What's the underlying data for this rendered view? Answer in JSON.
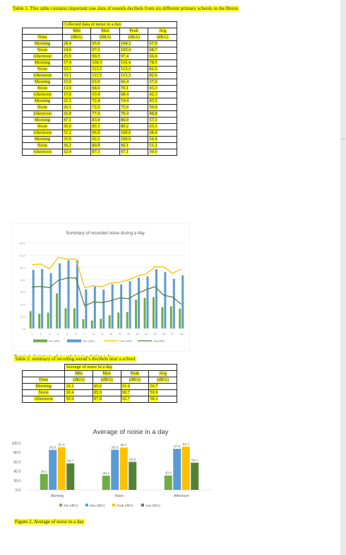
{
  "table1": {
    "caption": "Table 1. This table contains important raw data of sounds decibels from six different primary schools in the Bronx",
    "group_header": "Collected data of noise in a day",
    "col_headers": [
      {
        "top": "",
        "bottom": "Time"
      },
      {
        "top": "Min",
        "bottom": "(dBA)"
      },
      {
        "top": "Max",
        "bottom": "(dBA)"
      },
      {
        "top": "Peak",
        "bottom": "(dBA)"
      },
      {
        "top": "Avg",
        "bottom": "(dBA)"
      }
    ],
    "rows": [
      [
        "Morning",
        "28.4",
        "95.9",
        "104.2",
        "67.9"
      ],
      [
        "Noon",
        "24.0",
        "97.3",
        "105.4",
        "68.7"
      ],
      [
        "Afternoon",
        "25.9",
        "90.5",
        "97.4",
        "66.6"
      ],
      [
        "Morning",
        "57.4",
        "106.5",
        "116.4",
        "78.5"
      ],
      [
        "Noon",
        "33.1",
        "111.5",
        "113.3",
        "82.6"
      ],
      [
        "Afternoon",
        "33.1",
        "111.5",
        "113.3",
        "82.6"
      ],
      [
        "Morning",
        "15.0",
        "63.9",
        "66.4",
        "37.0"
      ],
      [
        "Noon",
        "13.0",
        "68.6",
        "70.1",
        "43.3"
      ],
      [
        "Afternoon",
        "15.8",
        "63.4",
        "68.4",
        "42.3"
      ],
      [
        "Morning",
        "21.5",
        "72.4",
        "74.4",
        "45.5"
      ],
      [
        "Noon",
        "26.1",
        "72.2",
        "75.9",
        "50.0"
      ],
      [
        "Afternoon",
        "26.8",
        "77.4",
        "79.4",
        "48.8"
      ],
      [
        "Morning",
        "47.1",
        "83.0",
        "86.0",
        "57.1"
      ],
      [
        "Noon",
        "50.0",
        "85.1",
        "89.2",
        "63.3"
      ],
      [
        "Afternoon",
        "51.2",
        "96.9",
        "100.6",
        "68.4"
      ],
      [
        "Morning",
        "35.0",
        "92.1",
        "100.9",
        "54.4"
      ],
      [
        "Noon",
        "36.2",
        "80.9",
        "90.1",
        "51.2"
      ],
      [
        "Afternoon",
        "32.4",
        "87.1",
        "97.1",
        "39.6"
      ]
    ]
  },
  "figure1": {
    "caption": "Figure 1. Summary of recorded noise during a day"
  },
  "table2": {
    "caption": "Table 2. summary of recoding sound’s decibels near a school",
    "group_header": "Average of noise in a day",
    "col_headers": [
      {
        "top": "",
        "bottom": "Time"
      },
      {
        "top": "Min",
        "bottom": "(dBA)"
      },
      {
        "top": "Max",
        "bottom": "(dBA)"
      },
      {
        "top": "Peak",
        "bottom": "(dBA)"
      },
      {
        "top": "Avg",
        "bottom": "(dBA)"
      }
    ],
    "rows": [
      [
        "Morning",
        "34.1",
        "85.6",
        "91.4",
        "56.7"
      ],
      [
        "Noon",
        "30.4",
        "85.9",
        "90.7",
        "59.9"
      ],
      [
        "Afternoon",
        "30.9",
        "87.8",
        "92.7",
        "58.1"
      ]
    ]
  },
  "figure2": {
    "caption": "Figure 2. Average of noise in a day"
  },
  "colors": {
    "min": "#5b9bd5",
    "max": "#6fa8dc",
    "peak": "#ffc000",
    "avg": "#548235",
    "green_bar": "#70ad47",
    "blue_bar": "#5b9bd5",
    "yellow_bar": "#ffc000",
    "dark_green_bar": "#548235"
  },
  "chart_data": [
    {
      "type": "bar",
      "title": "Summary of recorded noise during a day",
      "categories": [
        "1",
        "2",
        "3",
        "4",
        "5",
        "6",
        "7",
        "8",
        "9",
        "10",
        "11",
        "12",
        "13",
        "14",
        "15",
        "16",
        "17",
        "18"
      ],
      "y_tick_labels": [
        "0.0",
        "20.0",
        "40.0",
        "60.0",
        "80.0",
        "100.0",
        "120.0",
        "140.0"
      ],
      "ylim": [
        0,
        140
      ],
      "series": [
        {
          "name": "Min (dBA)",
          "kind": "bar",
          "values": [
            28.4,
            24.0,
            25.9,
            57.4,
            33.1,
            33.1,
            15.0,
            13.0,
            15.8,
            21.5,
            26.1,
            26.8,
            47.1,
            50.0,
            51.2,
            35.0,
            36.2,
            32.4
          ]
        },
        {
          "name": "Max (dBA)",
          "kind": "bar",
          "values": [
            95.9,
            97.3,
            90.5,
            106.5,
            111.5,
            111.5,
            63.9,
            68.6,
            63.4,
            72.4,
            72.2,
            77.4,
            83.0,
            85.1,
            96.9,
            92.1,
            80.9,
            87.1
          ]
        },
        {
          "name": "Peak (dBA)",
          "kind": "line",
          "values": [
            104.2,
            105.4,
            97.4,
            116.4,
            113.3,
            113.3,
            66.4,
            70.1,
            68.4,
            74.4,
            75.9,
            79.4,
            86.0,
            89.2,
            100.6,
            100.9,
            90.1,
            97.1
          ]
        },
        {
          "name": "Avg (dBA)",
          "kind": "line",
          "values": [
            67.9,
            68.7,
            66.6,
            78.5,
            82.6,
            82.6,
            37.0,
            43.3,
            42.3,
            45.5,
            50.0,
            48.8,
            57.1,
            63.3,
            68.4,
            54.4,
            51.2,
            39.6
          ]
        }
      ]
    },
    {
      "type": "bar",
      "title": "Average of noise in a day",
      "categories": [
        "Morning",
        "Noon",
        "Afternoon"
      ],
      "y_tick_labels": [
        "0.0",
        "20.0",
        "40.0",
        "60.0",
        "80.0",
        "100.0"
      ],
      "ylim": [
        0,
        100
      ],
      "series": [
        {
          "name": "Min (dBA)",
          "values": [
            34.1,
            30.4,
            30.9
          ],
          "labels": [
            "34.1",
            "30.4",
            "30.9"
          ]
        },
        {
          "name": "Max (dBA)",
          "values": [
            85.6,
            85.9,
            87.8
          ],
          "labels": [
            "85.6",
            "85.9",
            "87.8"
          ]
        },
        {
          "name": "Peak (dBA)",
          "values": [
            91.4,
            90.7,
            92.7
          ],
          "labels": [
            "91.4",
            "90.7",
            "92.7"
          ]
        },
        {
          "name": "Avg (dBA)",
          "values": [
            56.7,
            59.9,
            58.1
          ],
          "labels": [
            "56.7",
            "59.9",
            "58.1"
          ]
        }
      ]
    }
  ]
}
